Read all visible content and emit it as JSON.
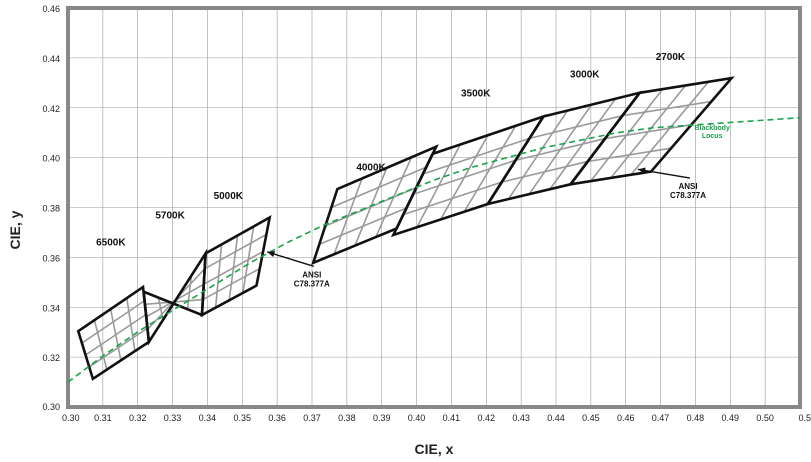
{
  "chart_data": {
    "type": "scatter",
    "xlabel": "CIE, x",
    "ylabel": "CIE, y",
    "xlim": [
      0.3,
      0.5
    ],
    "ylim": [
      0.3,
      0.46
    ],
    "x_ticks": [
      "0.30",
      "0.31",
      "0.32",
      "0.33",
      "0.34",
      "0.35",
      "0.36",
      "0.37",
      "0.38",
      "0.39",
      "0.40",
      "0.41",
      "0.42",
      "0.43",
      "0.44",
      "0.45",
      "0.46",
      "0.47",
      "0.48",
      "0.49",
      "0.50",
      "0.5"
    ],
    "y_ticks": [
      "0.30",
      "0.32",
      "0.34",
      "0.36",
      "0.38",
      "0.40",
      "0.42",
      "0.44",
      "0.46"
    ],
    "grid": true,
    "quadrangles": [
      {
        "label": "6500K",
        "corners": [
          [
            0.3068,
            0.3113
          ],
          [
            0.3221,
            0.3261
          ],
          [
            0.3205,
            0.3481
          ],
          [
            0.3028,
            0.3304
          ]
        ]
      },
      {
        "label": "5700K",
        "corners": [
          [
            0.3221,
            0.3261
          ],
          [
            0.3376,
            0.3616
          ],
          [
            0.3366,
            0.3369
          ],
          [
            0.3207,
            0.3462
          ]
        ]
      },
      {
        "label": "5000K",
        "corners": [
          [
            0.3376,
            0.3616
          ],
          [
            0.3551,
            0.376
          ],
          [
            0.3515,
            0.3487
          ],
          [
            0.3366,
            0.3369
          ]
        ]
      },
      {
        "label": "4000K",
        "corners": [
          [
            0.3736,
            0.3874
          ],
          [
            0.4006,
            0.4044
          ],
          [
            0.3898,
            0.3716
          ],
          [
            0.367,
            0.3578
          ]
        ]
      },
      {
        "label": "3500K",
        "corners": [
          [
            0.3996,
            0.4015
          ],
          [
            0.4299,
            0.4165
          ],
          [
            0.4147,
            0.3814
          ],
          [
            0.3889,
            0.369
          ]
        ]
      },
      {
        "label": "3000K",
        "corners": [
          [
            0.4299,
            0.4165
          ],
          [
            0.4562,
            0.426
          ],
          [
            0.4373,
            0.3893
          ],
          [
            0.4147,
            0.3814
          ]
        ]
      },
      {
        "label": "2700K",
        "corners": [
          [
            0.4562,
            0.426
          ],
          [
            0.4813,
            0.4319
          ],
          [
            0.4593,
            0.3944
          ],
          [
            0.4373,
            0.3893
          ]
        ]
      }
    ],
    "blackbody_locus": {
      "name": "Blackbody Locus",
      "points": [
        [
          0.3,
          0.31
        ],
        [
          0.31,
          0.321
        ],
        [
          0.32,
          0.331
        ],
        [
          0.33,
          0.34
        ],
        [
          0.34,
          0.349
        ],
        [
          0.35,
          0.358
        ],
        [
          0.36,
          0.366
        ],
        [
          0.37,
          0.373
        ],
        [
          0.38,
          0.379
        ],
        [
          0.39,
          0.385
        ],
        [
          0.4,
          0.391
        ],
        [
          0.41,
          0.396
        ],
        [
          0.42,
          0.4
        ],
        [
          0.43,
          0.404
        ],
        [
          0.44,
          0.407
        ],
        [
          0.45,
          0.41
        ],
        [
          0.46,
          0.412
        ],
        [
          0.47,
          0.413
        ],
        [
          0.48,
          0.414
        ],
        [
          0.49,
          0.415
        ],
        [
          0.5,
          0.416
        ]
      ]
    },
    "annotations": [
      {
        "text": [
          "ANSI",
          "C78.377A"
        ],
        "arrow_to": [
          0.3544,
          0.3622
        ]
      },
      {
        "text": [
          "ANSI",
          "C78.377A"
        ],
        "arrow_to": [
          0.4557,
          0.3953
        ]
      }
    ],
    "colors": {
      "frame": "#888888",
      "grid": "#9a9a9a",
      "cell_lines": "#9a9a9a",
      "outline": "#111111",
      "locus": "#1aa34a"
    }
  }
}
